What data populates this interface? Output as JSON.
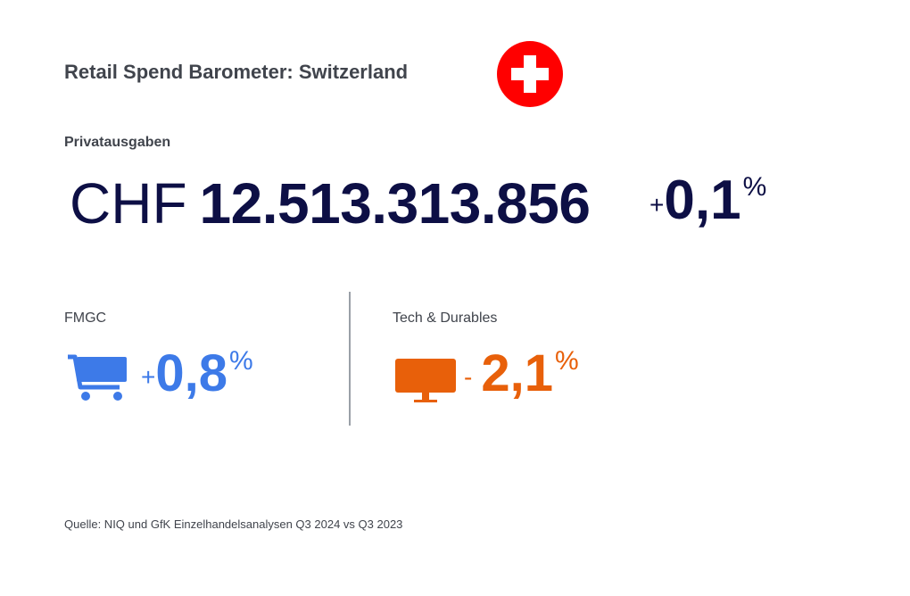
{
  "header": {
    "title": "Retail Spend Barometer: Switzerland"
  },
  "total": {
    "label": "Privatausgaben",
    "currency": "CHF",
    "amount": "12.513.313.856",
    "sign": "+",
    "change": "0,1",
    "unit": "%"
  },
  "fmcg": {
    "label": "FMGC",
    "sign": "+",
    "change": "0,8",
    "unit": "%"
  },
  "tech": {
    "label": "Tech & Durables",
    "sign": "-",
    "change": "2,1",
    "unit": "%"
  },
  "footer": {
    "source": "Quelle: NIQ und GfK Einzelhandelsanalysen Q3 2024 vs Q3 2023"
  }
}
